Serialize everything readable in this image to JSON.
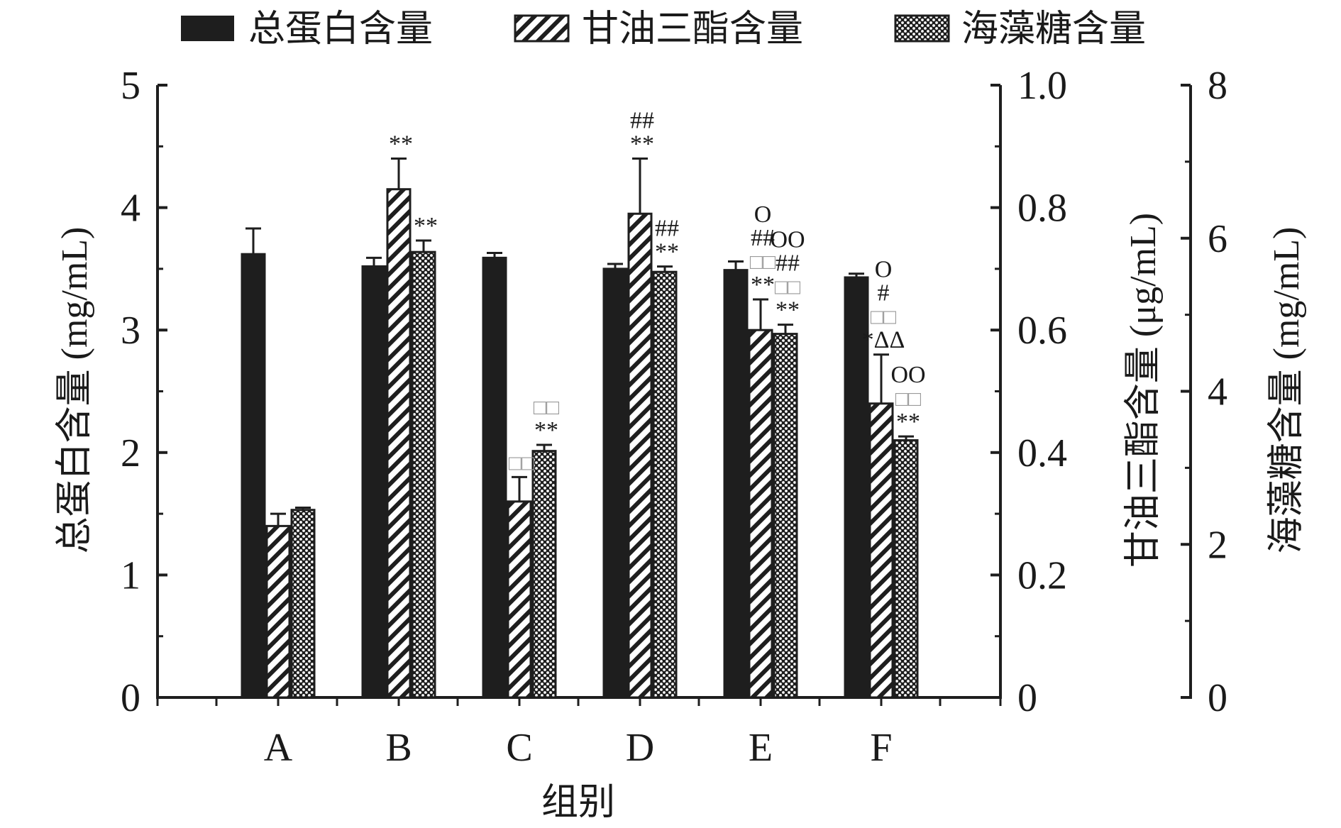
{
  "chart_data": {
    "type": "bar",
    "xlabel": "组别",
    "categories": [
      "A",
      "B",
      "C",
      "D",
      "E",
      "F"
    ],
    "series": [
      {
        "name": "总蛋白含量",
        "axis": "left",
        "pattern": "solid",
        "values": [
          3.62,
          3.52,
          3.59,
          3.5,
          3.49,
          3.43
        ],
        "errors": [
          0.21,
          0.07,
          0.04,
          0.04,
          0.07,
          0.03
        ]
      },
      {
        "name": "甘油三酯含量",
        "axis": "right1",
        "pattern": "hatch",
        "values": [
          0.28,
          0.83,
          0.32,
          0.79,
          0.6,
          0.48
        ],
        "errors": [
          0.02,
          0.05,
          0.04,
          0.09,
          0.05,
          0.08
        ]
      },
      {
        "name": "海藻糖含量",
        "axis": "right2",
        "pattern": "crosshatch",
        "values": [
          2.45,
          5.82,
          3.22,
          5.56,
          4.75,
          3.36
        ],
        "errors": [
          0.03,
          0.15,
          0.08,
          0.07,
          0.12,
          0.05
        ]
      }
    ],
    "axes": {
      "left": {
        "label": "总蛋白含量 (mg/mL)",
        "min": 0,
        "max": 5,
        "ticks": [
          "0",
          "1",
          "2",
          "3",
          "4",
          "5"
        ]
      },
      "right1": {
        "label": "甘油三酯含量 (μg/mL)",
        "min": 0,
        "max": 1.0,
        "ticks": [
          "0",
          "0.2",
          "0.4",
          "0.6",
          "0.8",
          "1.0"
        ]
      },
      "right2": {
        "label": "海藻糖含量 (mg/mL)",
        "min": 0,
        "max": 8,
        "ticks": [
          "0",
          "2",
          "4",
          "6",
          "8"
        ]
      }
    },
    "annotations": [
      {
        "cat": 1,
        "series": 1,
        "lines": [
          "**"
        ]
      },
      {
        "cat": 1,
        "series": 2,
        "lines": [
          "**"
        ]
      },
      {
        "cat": 2,
        "series": 1,
        "lines": [
          "□□"
        ]
      },
      {
        "cat": 2,
        "series": 2,
        "lines": [
          "□□",
          "**"
        ]
      },
      {
        "cat": 3,
        "series": 1,
        "lines": [
          "##",
          "**"
        ]
      },
      {
        "cat": 3,
        "series": 2,
        "lines": [
          "##",
          "**"
        ]
      },
      {
        "cat": 4,
        "series": 1,
        "lines": [
          "O",
          "##",
          "□□",
          "**"
        ]
      },
      {
        "cat": 4,
        "series": 2,
        "lines": [
          "OO",
          "##",
          "□□",
          "**"
        ]
      },
      {
        "cat": 5,
        "series": 1,
        "lines": [
          "O",
          "#",
          "□□",
          "*ΔΔ"
        ]
      },
      {
        "cat": 5,
        "series": 2,
        "lines": [
          "OO",
          "□□",
          "**"
        ]
      }
    ],
    "legend_position": "top",
    "grid": false,
    "colors": {
      "bar": "#1e1e1e",
      "axis": "#1e1e1e",
      "square_marks": "#9a9a9a"
    }
  }
}
